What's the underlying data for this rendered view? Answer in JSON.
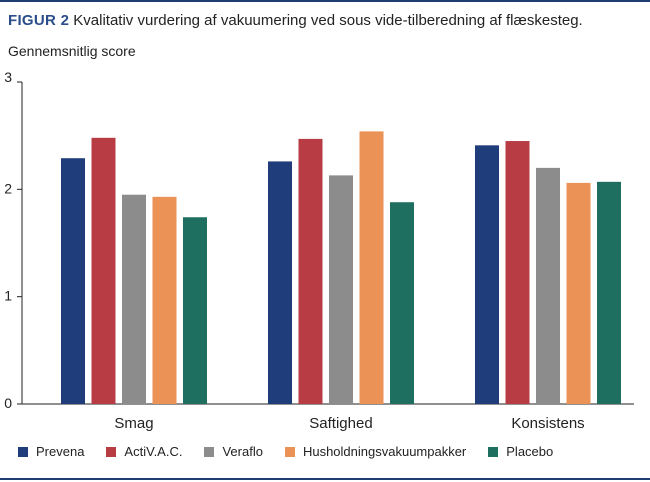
{
  "figure": {
    "label": "FIGUR 2",
    "title": "Kvalitativ vurdering af vakuumering ved sous vide-tilberedning af flæskesteg."
  },
  "chart_data": {
    "type": "bar",
    "title": "Kvalitativ vurdering af vakuumering ved sous vide-tilberedning af flæskesteg.",
    "xlabel": "",
    "ylabel": "Gennemsnitlig score",
    "ylim": [
      0,
      3
    ],
    "yticks": [
      0,
      1,
      2,
      3
    ],
    "grid": false,
    "legend_position": "bottom",
    "categories": [
      "Smag",
      "Saftighed",
      "Konsistens"
    ],
    "series": [
      {
        "name": "Prevena",
        "color": "#1f3d7a",
        "values": [
          2.29,
          2.26,
          2.41
        ]
      },
      {
        "name": "ActiV.A.C.",
        "color": "#b83c44",
        "values": [
          2.48,
          2.47,
          2.45
        ]
      },
      {
        "name": "Veraflo",
        "color": "#8c8c8c",
        "values": [
          1.95,
          2.13,
          2.2
        ]
      },
      {
        "name": "Husholdningsvakuumpakker",
        "color": "#eb9256",
        "values": [
          1.93,
          2.54,
          2.06
        ]
      },
      {
        "name": "Placebo",
        "color": "#1f6f60",
        "values": [
          1.74,
          1.88,
          2.07
        ]
      }
    ]
  }
}
